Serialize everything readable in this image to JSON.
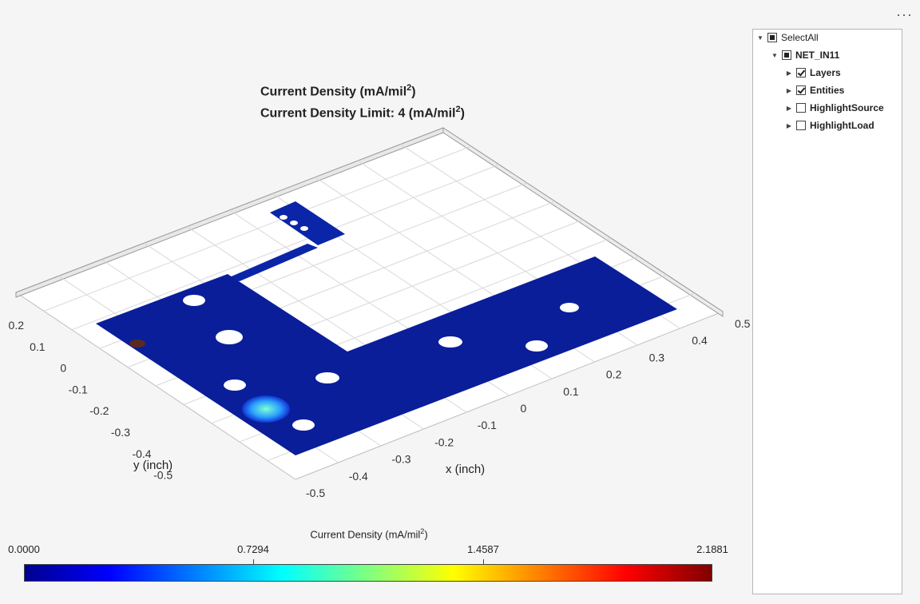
{
  "plot": {
    "title_line1_prefix": "Current Density (mA/mil",
    "title_line1_sup": "2",
    "title_line1_suffix": ")",
    "title_line2_prefix": "Current Density Limit: 4 (mA/mil",
    "title_line2_sup": "2",
    "title_line2_suffix": ")",
    "x_label": "x (inch)",
    "y_label": "y (inch)",
    "x_ticks": [
      "-0.5",
      "-0.4",
      "-0.3",
      "-0.2",
      "-0.1",
      "0",
      "0.1",
      "0.2",
      "0.3",
      "0.4",
      "0.5"
    ],
    "y_ticks": [
      "0.2",
      "0.1",
      "0",
      "-0.1",
      "-0.2",
      "-0.3",
      "-0.4",
      "-0.5"
    ]
  },
  "colorbar": {
    "label_prefix": "Current Density (mA/mil",
    "label_sup": "2",
    "label_suffix": ")",
    "ticks": [
      "0.0000",
      "0.7294",
      "1.4587",
      "2.1881"
    ],
    "colors": [
      "#00008f",
      "#0000ff",
      "#0080ff",
      "#00ffff",
      "#80ff80",
      "#ffff00",
      "#ff8000",
      "#ff0000",
      "#800000"
    ]
  },
  "toolbar": {
    "menu_label": "···"
  },
  "tree": {
    "select_all": "SelectAll",
    "net": "NET_IN11",
    "layers": "Layers",
    "entities": "Entities",
    "highlight_source": "HighlightSource",
    "highlight_load": "HighlightLoad"
  }
}
